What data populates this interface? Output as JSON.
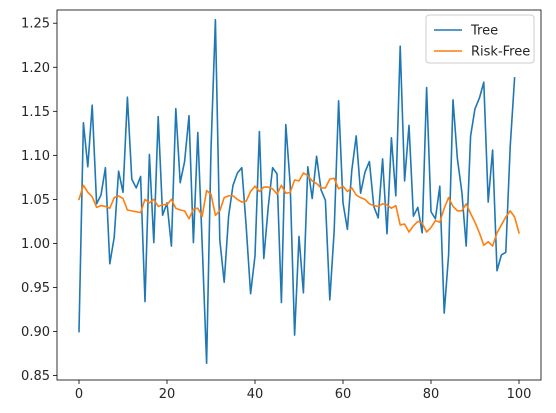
{
  "chart_data": {
    "type": "line",
    "title": "",
    "xlabel": "",
    "ylabel": "",
    "xlim": [
      -5,
      105
    ],
    "ylim": [
      0.845,
      1.265
    ],
    "x_ticks": [
      0,
      20,
      40,
      60,
      80,
      100
    ],
    "x_tick_labels": [
      "0",
      "20",
      "40",
      "60",
      "80",
      "100"
    ],
    "y_ticks": [
      0.85,
      0.9,
      0.95,
      1.0,
      1.05,
      1.1,
      1.15,
      1.2,
      1.25
    ],
    "y_tick_labels": [
      "0.85",
      "0.90",
      "0.95",
      "1.00",
      "1.05",
      "1.10",
      "1.15",
      "1.20",
      "1.25"
    ],
    "grid": false,
    "legend_position": "top-right",
    "x": [
      0,
      1,
      2,
      3,
      4,
      5,
      6,
      7,
      8,
      9,
      10,
      11,
      12,
      13,
      14,
      15,
      16,
      17,
      18,
      19,
      20,
      21,
      22,
      23,
      24,
      25,
      26,
      27,
      28,
      29,
      30,
      31,
      32,
      33,
      34,
      35,
      36,
      37,
      38,
      39,
      40,
      41,
      42,
      43,
      44,
      45,
      46,
      47,
      48,
      49,
      50,
      51,
      52,
      53,
      54,
      55,
      56,
      57,
      58,
      59,
      60,
      61,
      62,
      63,
      64,
      65,
      66,
      67,
      68,
      69,
      70,
      71,
      72,
      73,
      74,
      75,
      76,
      77,
      78,
      79,
      80,
      81,
      82,
      83,
      84,
      85,
      86,
      87,
      88,
      89,
      90,
      91,
      92,
      93,
      94,
      95,
      96,
      97,
      98,
      99,
      100
    ],
    "series": [
      {
        "name": "Tree",
        "color": "#1f77b4",
        "values": [
          0.9,
          1.137,
          1.087,
          1.157,
          1.045,
          1.055,
          1.086,
          0.977,
          1.007,
          1.082,
          1.058,
          1.166,
          1.073,
          1.063,
          1.076,
          0.934,
          1.101,
          1.001,
          1.144,
          1.032,
          1.046,
          0.997,
          1.153,
          1.069,
          1.093,
          1.145,
          1.001,
          1.126,
          0.999,
          0.864,
          1.107,
          1.254,
          1.004,
          0.956,
          1.031,
          1.066,
          1.08,
          1.086,
          1.019,
          0.943,
          0.986,
          1.127,
          0.983,
          1.041,
          1.086,
          1.079,
          0.933,
          1.135,
          1.067,
          0.896,
          1.008,
          0.944,
          1.087,
          1.051,
          1.099,
          1.061,
          1.049,
          0.936,
          1.015,
          1.162,
          1.046,
          1.016,
          1.083,
          1.122,
          1.057,
          1.081,
          1.093,
          1.042,
          1.029,
          1.096,
          1.011,
          1.12,
          1.054,
          1.224,
          1.071,
          1.134,
          1.031,
          1.041,
          1.012,
          1.177,
          1.036,
          1.028,
          1.065,
          0.921,
          0.987,
          1.163,
          1.096,
          1.059,
          0.997,
          1.122,
          1.153,
          1.165,
          1.183,
          1.047,
          1.106,
          0.969,
          0.987,
          0.99,
          1.11,
          1.188,
          null
        ]
      },
      {
        "name": "Risk-Free",
        "color": "#ff7f0e",
        "values": [
          1.05,
          1.066,
          1.058,
          1.053,
          1.041,
          1.043,
          1.042,
          1.04,
          1.052,
          1.054,
          1.051,
          1.038,
          1.037,
          1.036,
          1.035,
          1.05,
          1.046,
          1.05,
          1.042,
          1.044,
          1.044,
          1.05,
          1.04,
          1.038,
          1.037,
          1.028,
          1.039,
          1.04,
          1.031,
          1.06,
          1.056,
          1.032,
          1.037,
          1.052,
          1.054,
          1.054,
          1.05,
          1.047,
          1.048,
          1.059,
          1.065,
          1.059,
          1.064,
          1.064,
          1.062,
          1.056,
          1.066,
          1.057,
          1.058,
          1.072,
          1.071,
          1.08,
          1.077,
          1.071,
          1.068,
          1.063,
          1.063,
          1.073,
          1.074,
          1.062,
          1.065,
          1.059,
          1.063,
          1.055,
          1.052,
          1.05,
          1.045,
          1.043,
          1.042,
          1.045,
          1.044,
          1.04,
          1.043,
          1.021,
          1.022,
          1.013,
          1.02,
          1.025,
          1.023,
          1.013,
          1.018,
          1.026,
          1.024,
          1.04,
          1.052,
          1.042,
          1.037,
          1.037,
          1.045,
          1.034,
          1.024,
          1.012,
          0.998,
          1.002,
          0.997,
          1.012,
          1.021,
          1.03,
          1.037,
          1.03,
          1.012
        ]
      }
    ]
  }
}
